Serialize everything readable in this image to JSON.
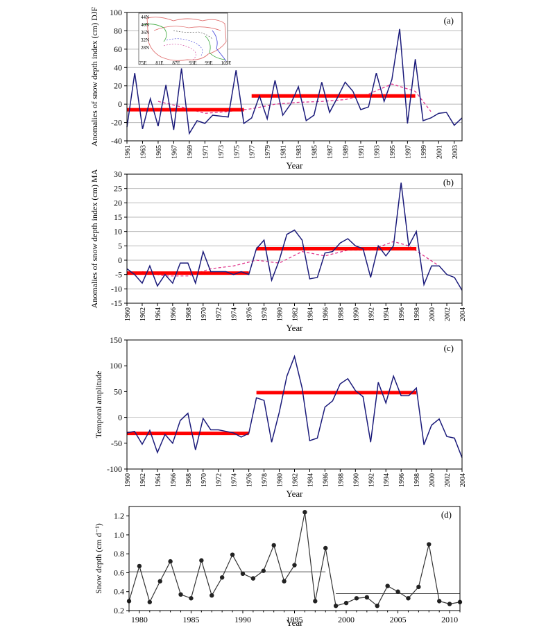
{
  "chart_data": [
    {
      "panel": "(a)",
      "type": "line",
      "ylabel": "Anomalies of snow depth index (cm) DJF",
      "xlabel": "Year",
      "ylim": [
        -40,
        100
      ],
      "yticks": [
        -40,
        -20,
        0,
        20,
        40,
        60,
        80,
        100
      ],
      "xlim": [
        1961,
        2004
      ],
      "xticks": [
        1961,
        1963,
        1965,
        1967,
        1969,
        1971,
        1973,
        1975,
        1977,
        1979,
        1981,
        1983,
        1985,
        1987,
        1989,
        1991,
        1993,
        1995,
        1997,
        1999,
        2001,
        2003
      ],
      "grid": "horizontal",
      "colors": {
        "series": "#1a1a7a",
        "smooth": "#e0338a",
        "mean": "#ff0000"
      },
      "x": [
        1961,
        1962,
        1963,
        1964,
        1965,
        1966,
        1967,
        1968,
        1969,
        1970,
        1971,
        1972,
        1973,
        1974,
        1975,
        1976,
        1977,
        1978,
        1979,
        1980,
        1981,
        1982,
        1983,
        1984,
        1985,
        1986,
        1987,
        1988,
        1989,
        1990,
        1991,
        1992,
        1993,
        1994,
        1995,
        1996,
        1997,
        1998,
        1999,
        2000,
        2001,
        2002,
        2003,
        2004
      ],
      "y": [
        -25,
        34,
        -27,
        6,
        -24,
        21,
        -28,
        39,
        -32,
        -18,
        -21,
        -12,
        -13,
        -14,
        37,
        -21,
        -15,
        9,
        -16,
        26,
        -12,
        0,
        19,
        -18,
        -12,
        24,
        -9,
        7,
        24,
        14,
        -6,
        -3,
        34,
        3,
        27,
        82,
        -21,
        49,
        -18,
        -15,
        -10,
        -9,
        -23,
        -15
      ],
      "smooth_x": [
        1965,
        1968,
        1971,
        1974,
        1977,
        1980,
        1983,
        1986,
        1989,
        1992,
        1995,
        1998,
        2000
      ],
      "smooth_y": [
        3,
        -3,
        -10,
        -8,
        -5,
        0,
        2,
        3,
        5,
        11,
        22,
        14,
        -8
      ],
      "means": [
        {
          "x": [
            1961,
            1976
          ],
          "y": -6
        },
        {
          "x": [
            1977,
            1998
          ],
          "y": 9
        }
      ],
      "inset_map": {
        "lat_labels": [
          "44N",
          "40N",
          "36N",
          "32N",
          "28N"
        ],
        "lon_labels": [
          "75E",
          "81E",
          "87E",
          "93E",
          "99E",
          "105E"
        ]
      }
    },
    {
      "panel": "(b)",
      "type": "line",
      "ylabel": "Anomalies of snow depth index (cm) MA",
      "xlabel": "Year",
      "ylim": [
        -15,
        30
      ],
      "yticks": [
        -15,
        -10,
        -5,
        0,
        5,
        10,
        15,
        20,
        25,
        30
      ],
      "xlim": [
        1960,
        2004
      ],
      "xticks": [
        1960,
        1962,
        1964,
        1966,
        1968,
        1970,
        1972,
        1974,
        1976,
        1978,
        1980,
        1982,
        1984,
        1986,
        1988,
        1990,
        1992,
        1994,
        1996,
        1998,
        2000,
        2002,
        2004
      ],
      "grid": "horizontal",
      "colors": {
        "series": "#1a1a7a",
        "smooth": "#e0338a",
        "mean": "#ff0000"
      },
      "x": [
        1960,
        1961,
        1962,
        1963,
        1964,
        1965,
        1966,
        1967,
        1968,
        1969,
        1970,
        1971,
        1972,
        1973,
        1974,
        1975,
        1976,
        1977,
        1978,
        1979,
        1980,
        1981,
        1982,
        1983,
        1984,
        1985,
        1986,
        1987,
        1988,
        1989,
        1990,
        1991,
        1992,
        1993,
        1994,
        1995,
        1996,
        1997,
        1998,
        1999,
        2000,
        2001,
        2002,
        2003,
        2004
      ],
      "y": [
        -3,
        -5,
        -8,
        -2,
        -9,
        -5,
        -8,
        -1,
        -1,
        -8,
        3,
        -4,
        -4,
        -4,
        -5,
        -4,
        -5,
        4,
        7,
        -7,
        0,
        9,
        10.5,
        7,
        -6.5,
        -6,
        2.5,
        3,
        6,
        7.5,
        5,
        4,
        -6,
        5,
        1.5,
        5,
        27,
        5,
        10,
        -8.5,
        -2,
        -2,
        -5,
        -6,
        -10.5
      ],
      "smooth_x": [
        1962,
        1965,
        1968,
        1971,
        1974,
        1977,
        1980,
        1983,
        1986,
        1989,
        1992,
        1995,
        1997,
        1999,
        2001
      ],
      "smooth_y": [
        -4,
        -5.5,
        -5.5,
        -3,
        -2,
        0,
        -1,
        3,
        1.5,
        3.5,
        3.5,
        6.5,
        5,
        1.5,
        -2
      ],
      "means": [
        {
          "x": [
            1960,
            1976
          ],
          "y": -4.5
        },
        {
          "x": [
            1977,
            1998
          ],
          "y": 4
        }
      ]
    },
    {
      "panel": "(c)",
      "type": "line",
      "ylabel": "Temporal amplitude",
      "xlabel": "Year",
      "ylim": [
        -100,
        150
      ],
      "yticks": [
        -100,
        -50,
        0,
        50,
        100,
        150
      ],
      "xlim": [
        1960,
        2004
      ],
      "xticks": [
        1960,
        1962,
        1964,
        1966,
        1968,
        1970,
        1972,
        1974,
        1976,
        1978,
        1980,
        1982,
        1984,
        1986,
        1988,
        1990,
        1992,
        1994,
        1996,
        1998,
        2000,
        2002,
        2004
      ],
      "grid": "none",
      "colors": {
        "series": "#1a1a7a",
        "mean": "#ff0000"
      },
      "x": [
        1960,
        1961,
        1962,
        1963,
        1964,
        1965,
        1966,
        1967,
        1968,
        1969,
        1970,
        1971,
        1972,
        1973,
        1974,
        1975,
        1976,
        1977,
        1978,
        1979,
        1980,
        1981,
        1982,
        1983,
        1984,
        1985,
        1986,
        1987,
        1988,
        1989,
        1990,
        1991,
        1992,
        1993,
        1994,
        1995,
        1996,
        1997,
        1998,
        1999,
        2000,
        2001,
        2002,
        2003,
        2004
      ],
      "y": [
        -30,
        -27,
        -52,
        -25,
        -68,
        -33,
        -50,
        -6,
        8,
        -63,
        -2,
        -24,
        -24,
        -27,
        -30,
        -38,
        -31,
        38,
        33,
        -48,
        10,
        80,
        118,
        57,
        -45,
        -40,
        20,
        32,
        65,
        75,
        52,
        40,
        -48,
        68,
        28,
        80,
        42,
        42,
        57,
        -53,
        -15,
        -3,
        -37,
        -40,
        -78
      ],
      "means": [
        {
          "x": [
            1960,
            1976
          ],
          "y": -31
        },
        {
          "x": [
            1977,
            1998
          ],
          "y": 48
        }
      ]
    },
    {
      "panel": "(d)",
      "type": "line",
      "ylabel": "Snow depth (cm d⁻¹)",
      "xlabel": "Year",
      "ylim": [
        0.2,
        1.3
      ],
      "yticks": [
        0.2,
        0.4,
        0.6,
        0.8,
        1.0,
        1.2
      ],
      "xlim": [
        1979,
        2011
      ],
      "xticks": [
        1980,
        1985,
        1990,
        1995,
        2000,
        2005,
        2010
      ],
      "grid": "none",
      "colors": {
        "series": "#333333",
        "mean": "#555555"
      },
      "x": [
        1979,
        1980,
        1981,
        1982,
        1983,
        1984,
        1985,
        1986,
        1987,
        1988,
        1989,
        1990,
        1991,
        1992,
        1993,
        1994,
        1995,
        1996,
        1997,
        1998,
        1999,
        2000,
        2001,
        2002,
        2003,
        2004,
        2005,
        2006,
        2007,
        2008,
        2009,
        2010,
        2011
      ],
      "y": [
        0.3,
        0.67,
        0.29,
        0.51,
        0.72,
        0.37,
        0.33,
        0.73,
        0.36,
        0.55,
        0.79,
        0.59,
        0.54,
        0.62,
        0.89,
        0.51,
        0.68,
        1.24,
        0.3,
        0.86,
        0.25,
        0.28,
        0.33,
        0.34,
        0.25,
        0.46,
        0.4,
        0.33,
        0.45,
        0.9,
        0.3,
        0.27,
        0.29
      ],
      "means": [
        {
          "x": [
            1979,
            1998
          ],
          "y": 0.61
        },
        {
          "x": [
            1999,
            2011
          ],
          "y": 0.38
        }
      ]
    }
  ]
}
